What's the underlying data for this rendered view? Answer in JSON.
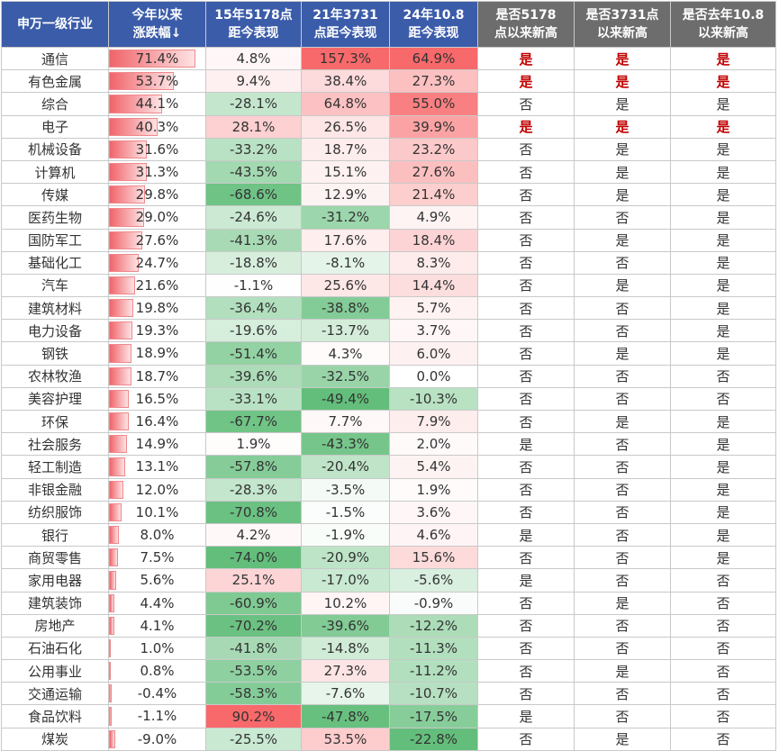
{
  "header": {
    "industry": "申万一级行业",
    "ytd": [
      "今年以来",
      "涨跌幅↓"
    ],
    "p15": [
      "15年5178点",
      "距今表现"
    ],
    "p21": [
      "21年3731",
      "点距今表现"
    ],
    "p24": [
      "24年10.8",
      "距今表现"
    ],
    "f5178": [
      "是否5178",
      "点以来新高"
    ],
    "f3731": [
      "是否3731点",
      "以来新高"
    ],
    "f108": [
      "是否去年10.8",
      "以来新高"
    ]
  },
  "colors": {
    "header_blue": "#3b5ca9",
    "header_gray": "#6d6d6d",
    "positive": "#f8696b",
    "negative": "#63be7b",
    "yes_text": "#c00000"
  },
  "flags": {
    "yes": "是",
    "no": "否"
  },
  "rows": [
    {
      "name": "通信",
      "ytd": "71.4%",
      "ytd_v": 71.4,
      "p15": "4.8%",
      "p15_v": 4.8,
      "p21": "157.3%",
      "p21_v": 157.3,
      "p24": "64.9%",
      "p24_v": 64.9,
      "f1": "是",
      "f2": "是",
      "f3": "是",
      "hl": true
    },
    {
      "name": "有色金属",
      "ytd": "53.7%",
      "ytd_v": 53.7,
      "p15": "9.4%",
      "p15_v": 9.4,
      "p21": "38.4%",
      "p21_v": 38.4,
      "p24": "27.3%",
      "p24_v": 27.3,
      "f1": "是",
      "f2": "是",
      "f3": "是",
      "hl": true
    },
    {
      "name": "综合",
      "ytd": "44.1%",
      "ytd_v": 44.1,
      "p15": "-28.1%",
      "p15_v": -28.1,
      "p21": "64.8%",
      "p21_v": 64.8,
      "p24": "55.0%",
      "p24_v": 55.0,
      "f1": "否",
      "f2": "是",
      "f3": "是",
      "hl": false
    },
    {
      "name": "电子",
      "ytd": "40.3%",
      "ytd_v": 40.3,
      "p15": "28.1%",
      "p15_v": 28.1,
      "p21": "26.5%",
      "p21_v": 26.5,
      "p24": "39.9%",
      "p24_v": 39.9,
      "f1": "是",
      "f2": "是",
      "f3": "是",
      "hl": true
    },
    {
      "name": "机械设备",
      "ytd": "31.6%",
      "ytd_v": 31.6,
      "p15": "-33.2%",
      "p15_v": -33.2,
      "p21": "18.7%",
      "p21_v": 18.7,
      "p24": "23.2%",
      "p24_v": 23.2,
      "f1": "否",
      "f2": "是",
      "f3": "是",
      "hl": false
    },
    {
      "name": "计算机",
      "ytd": "31.3%",
      "ytd_v": 31.3,
      "p15": "-43.5%",
      "p15_v": -43.5,
      "p21": "15.1%",
      "p21_v": 15.1,
      "p24": "27.6%",
      "p24_v": 27.6,
      "f1": "否",
      "f2": "是",
      "f3": "是",
      "hl": false
    },
    {
      "name": "传媒",
      "ytd": "29.8%",
      "ytd_v": 29.8,
      "p15": "-68.6%",
      "p15_v": -68.6,
      "p21": "12.9%",
      "p21_v": 12.9,
      "p24": "21.4%",
      "p24_v": 21.4,
      "f1": "否",
      "f2": "是",
      "f3": "是",
      "hl": false
    },
    {
      "name": "医药生物",
      "ytd": "29.0%",
      "ytd_v": 29.0,
      "p15": "-24.6%",
      "p15_v": -24.6,
      "p21": "-31.2%",
      "p21_v": -31.2,
      "p24": "4.9%",
      "p24_v": 4.9,
      "f1": "否",
      "f2": "否",
      "f3": "是",
      "hl": false
    },
    {
      "name": "国防军工",
      "ytd": "27.6%",
      "ytd_v": 27.6,
      "p15": "-41.3%",
      "p15_v": -41.3,
      "p21": "17.6%",
      "p21_v": 17.6,
      "p24": "18.4%",
      "p24_v": 18.4,
      "f1": "否",
      "f2": "是",
      "f3": "是",
      "hl": false
    },
    {
      "name": "基础化工",
      "ytd": "24.7%",
      "ytd_v": 24.7,
      "p15": "-18.8%",
      "p15_v": -18.8,
      "p21": "-8.1%",
      "p21_v": -8.1,
      "p24": "8.3%",
      "p24_v": 8.3,
      "f1": "否",
      "f2": "否",
      "f3": "是",
      "hl": false
    },
    {
      "name": "汽车",
      "ytd": "21.6%",
      "ytd_v": 21.6,
      "p15": "-1.1%",
      "p15_v": -1.1,
      "p21": "25.6%",
      "p21_v": 25.6,
      "p24": "14.4%",
      "p24_v": 14.4,
      "f1": "否",
      "f2": "是",
      "f3": "是",
      "hl": false
    },
    {
      "name": "建筑材料",
      "ytd": "19.8%",
      "ytd_v": 19.8,
      "p15": "-36.4%",
      "p15_v": -36.4,
      "p21": "-38.8%",
      "p21_v": -38.8,
      "p24": "5.7%",
      "p24_v": 5.7,
      "f1": "否",
      "f2": "否",
      "f3": "是",
      "hl": false
    },
    {
      "name": "电力设备",
      "ytd": "19.3%",
      "ytd_v": 19.3,
      "p15": "-19.6%",
      "p15_v": -19.6,
      "p21": "-13.7%",
      "p21_v": -13.7,
      "p24": "3.7%",
      "p24_v": 3.7,
      "f1": "否",
      "f2": "否",
      "f3": "是",
      "hl": false
    },
    {
      "name": "钢铁",
      "ytd": "18.9%",
      "ytd_v": 18.9,
      "p15": "-51.4%",
      "p15_v": -51.4,
      "p21": "4.3%",
      "p21_v": 4.3,
      "p24": "6.0%",
      "p24_v": 6.0,
      "f1": "否",
      "f2": "是",
      "f3": "是",
      "hl": false
    },
    {
      "name": "农林牧渔",
      "ytd": "18.7%",
      "ytd_v": 18.7,
      "p15": "-39.6%",
      "p15_v": -39.6,
      "p21": "-32.5%",
      "p21_v": -32.5,
      "p24": "0.0%",
      "p24_v": 0.0,
      "f1": "否",
      "f2": "否",
      "f3": "否",
      "hl": false
    },
    {
      "name": "美容护理",
      "ytd": "16.5%",
      "ytd_v": 16.5,
      "p15": "-33.1%",
      "p15_v": -33.1,
      "p21": "-49.4%",
      "p21_v": -49.4,
      "p24": "-10.3%",
      "p24_v": -10.3,
      "f1": "否",
      "f2": "否",
      "f3": "否",
      "hl": false
    },
    {
      "name": "环保",
      "ytd": "16.4%",
      "ytd_v": 16.4,
      "p15": "-67.7%",
      "p15_v": -67.7,
      "p21": "7.7%",
      "p21_v": 7.7,
      "p24": "7.9%",
      "p24_v": 7.9,
      "f1": "否",
      "f2": "是",
      "f3": "是",
      "hl": false
    },
    {
      "name": "社会服务",
      "ytd": "14.9%",
      "ytd_v": 14.9,
      "p15": "1.9%",
      "p15_v": 1.9,
      "p21": "-43.3%",
      "p21_v": -43.3,
      "p24": "2.0%",
      "p24_v": 2.0,
      "f1": "是",
      "f2": "否",
      "f3": "是",
      "hl": false
    },
    {
      "name": "轻工制造",
      "ytd": "13.1%",
      "ytd_v": 13.1,
      "p15": "-57.8%",
      "p15_v": -57.8,
      "p21": "-20.4%",
      "p21_v": -20.4,
      "p24": "5.4%",
      "p24_v": 5.4,
      "f1": "否",
      "f2": "否",
      "f3": "是",
      "hl": false
    },
    {
      "name": "非银金融",
      "ytd": "12.0%",
      "ytd_v": 12.0,
      "p15": "-28.3%",
      "p15_v": -28.3,
      "p21": "-3.5%",
      "p21_v": -3.5,
      "p24": "1.9%",
      "p24_v": 1.9,
      "f1": "否",
      "f2": "否",
      "f3": "是",
      "hl": false
    },
    {
      "name": "纺织服饰",
      "ytd": "10.1%",
      "ytd_v": 10.1,
      "p15": "-70.8%",
      "p15_v": -70.8,
      "p21": "-1.5%",
      "p21_v": -1.5,
      "p24": "3.6%",
      "p24_v": 3.6,
      "f1": "否",
      "f2": "否",
      "f3": "是",
      "hl": false
    },
    {
      "name": "银行",
      "ytd": "8.0%",
      "ytd_v": 8.0,
      "p15": "4.2%",
      "p15_v": 4.2,
      "p21": "-1.9%",
      "p21_v": -1.9,
      "p24": "4.6%",
      "p24_v": 4.6,
      "f1": "是",
      "f2": "否",
      "f3": "是",
      "hl": false
    },
    {
      "name": "商贸零售",
      "ytd": "7.5%",
      "ytd_v": 7.5,
      "p15": "-74.0%",
      "p15_v": -74.0,
      "p21": "-20.9%",
      "p21_v": -20.9,
      "p24": "15.6%",
      "p24_v": 15.6,
      "f1": "否",
      "f2": "否",
      "f3": "是",
      "hl": false
    },
    {
      "name": "家用电器",
      "ytd": "5.6%",
      "ytd_v": 5.6,
      "p15": "25.1%",
      "p15_v": 25.1,
      "p21": "-17.0%",
      "p21_v": -17.0,
      "p24": "-5.6%",
      "p24_v": -5.6,
      "f1": "是",
      "f2": "否",
      "f3": "否",
      "hl": false
    },
    {
      "name": "建筑装饰",
      "ytd": "4.4%",
      "ytd_v": 4.4,
      "p15": "-60.9%",
      "p15_v": -60.9,
      "p21": "10.2%",
      "p21_v": 10.2,
      "p24": "-0.9%",
      "p24_v": -0.9,
      "f1": "否",
      "f2": "是",
      "f3": "否",
      "hl": false
    },
    {
      "name": "房地产",
      "ytd": "4.1%",
      "ytd_v": 4.1,
      "p15": "-70.2%",
      "p15_v": -70.2,
      "p21": "-39.6%",
      "p21_v": -39.6,
      "p24": "-12.2%",
      "p24_v": -12.2,
      "f1": "否",
      "f2": "否",
      "f3": "否",
      "hl": false
    },
    {
      "name": "石油石化",
      "ytd": "1.0%",
      "ytd_v": 1.0,
      "p15": "-41.8%",
      "p15_v": -41.8,
      "p21": "-14.8%",
      "p21_v": -14.8,
      "p24": "-11.3%",
      "p24_v": -11.3,
      "f1": "否",
      "f2": "否",
      "f3": "否",
      "hl": false
    },
    {
      "name": "公用事业",
      "ytd": "0.8%",
      "ytd_v": 0.8,
      "p15": "-53.5%",
      "p15_v": -53.5,
      "p21": "27.3%",
      "p21_v": 27.3,
      "p24": "-11.2%",
      "p24_v": -11.2,
      "f1": "否",
      "f2": "是",
      "f3": "否",
      "hl": false
    },
    {
      "name": "交通运输",
      "ytd": "-0.4%",
      "ytd_v": -0.4,
      "p15": "-58.3%",
      "p15_v": -58.3,
      "p21": "-7.6%",
      "p21_v": -7.6,
      "p24": "-10.7%",
      "p24_v": -10.7,
      "f1": "否",
      "f2": "否",
      "f3": "否",
      "hl": false
    },
    {
      "name": "食品饮料",
      "ytd": "-1.1%",
      "ytd_v": -1.1,
      "p15": "90.2%",
      "p15_v": 90.2,
      "p21": "-47.8%",
      "p21_v": -47.8,
      "p24": "-17.5%",
      "p24_v": -17.5,
      "f1": "是",
      "f2": "否",
      "f3": "否",
      "hl": false
    },
    {
      "name": "煤炭",
      "ytd": "-9.0%",
      "ytd_v": -9.0,
      "p15": "-25.5%",
      "p15_v": -25.5,
      "p21": "53.5%",
      "p21_v": 53.5,
      "p24": "-22.8%",
      "p24_v": -22.8,
      "f1": "否",
      "f2": "是",
      "f3": "否",
      "hl": false
    }
  ]
}
